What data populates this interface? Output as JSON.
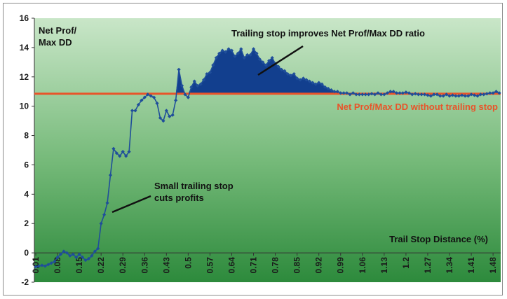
{
  "chart_data": {
    "type": "line",
    "title": "",
    "ylabel": "Net Prof/\nMax DD",
    "xlabel": "Trail Stop Distance (%)",
    "ylim": [
      -2,
      16
    ],
    "y_ticks": [
      "-2",
      "0",
      "2",
      "4",
      "6",
      "8",
      "10",
      "12",
      "14",
      "16"
    ],
    "x_tick_labels": [
      "0.01",
      "0.08",
      "0.15",
      "0.22",
      "0.29",
      "0.36",
      "0.43",
      "0.5",
      "0.57",
      "0.64",
      "0.71",
      "0.78",
      "0.85",
      "0.92",
      "0.99",
      "1.06",
      "1.13",
      "1.2",
      "1.27",
      "1.34",
      "1.41",
      "1.48"
    ],
    "grid": false,
    "reference_line": {
      "value": 10.85,
      "label": "Net Prof/Max DD without trailing stop"
    },
    "annotations": [
      {
        "text": "Trailing stop improves Net Prof/Max DD ratio"
      },
      {
        "text": "Small trailing stop\ncuts profits"
      }
    ],
    "series": [
      {
        "x": [
          0.01,
          0.02,
          0.03,
          0.04,
          0.05,
          0.06,
          0.07,
          0.08,
          0.09,
          0.1,
          0.11,
          0.12,
          0.13,
          0.14,
          0.15,
          0.16,
          0.17,
          0.18,
          0.19,
          0.2,
          0.21,
          0.22,
          0.23,
          0.24,
          0.25,
          0.26,
          0.27,
          0.28,
          0.29,
          0.3,
          0.31,
          0.32,
          0.33,
          0.34,
          0.35,
          0.36,
          0.37,
          0.38,
          0.39,
          0.4,
          0.41,
          0.42,
          0.43,
          0.44,
          0.45,
          0.46,
          0.47,
          0.48,
          0.49,
          0.5,
          0.51,
          0.52,
          0.53,
          0.54,
          0.55,
          0.56,
          0.57,
          0.58,
          0.59,
          0.6,
          0.61,
          0.62,
          0.63,
          0.64,
          0.65,
          0.66,
          0.67,
          0.68,
          0.69,
          0.7,
          0.71,
          0.72,
          0.73,
          0.74,
          0.75,
          0.76,
          0.77,
          0.78,
          0.79,
          0.8,
          0.81,
          0.82,
          0.83,
          0.84,
          0.85,
          0.86,
          0.87,
          0.88,
          0.89,
          0.9,
          0.91,
          0.92,
          0.93,
          0.94,
          0.95,
          0.96,
          0.97,
          0.98,
          0.99,
          1.0,
          1.01,
          1.02,
          1.03,
          1.04,
          1.05,
          1.06,
          1.07,
          1.08,
          1.09,
          1.1,
          1.11,
          1.12,
          1.13,
          1.14,
          1.15,
          1.16,
          1.17,
          1.18,
          1.19,
          1.2,
          1.21,
          1.22,
          1.23,
          1.24,
          1.25,
          1.26,
          1.27,
          1.28,
          1.29,
          1.3,
          1.31,
          1.32,
          1.33,
          1.34,
          1.35,
          1.36,
          1.37,
          1.38,
          1.39,
          1.4,
          1.41,
          1.42,
          1.43,
          1.44,
          1.45,
          1.46,
          1.47,
          1.48,
          1.49,
          1.5
        ],
        "values": [
          -0.95,
          -0.9,
          -0.85,
          -0.9,
          -0.8,
          -0.7,
          -0.6,
          -0.3,
          -0.1,
          0.1,
          0.0,
          -0.2,
          -0.1,
          -0.3,
          -0.1,
          -0.3,
          -0.5,
          -0.4,
          -0.2,
          0.1,
          0.3,
          2.0,
          2.6,
          3.4,
          5.3,
          7.1,
          6.8,
          6.6,
          6.9,
          6.6,
          6.9,
          9.7,
          9.7,
          10.1,
          10.4,
          10.6,
          10.8,
          10.7,
          10.6,
          10.2,
          9.2,
          9.0,
          9.7,
          9.3,
          9.4,
          10.4,
          12.5,
          11.4,
          10.8,
          10.6,
          11.3,
          11.7,
          11.4,
          11.5,
          11.8,
          12.2,
          12.3,
          12.8,
          13.3,
          13.6,
          13.8,
          13.7,
          13.9,
          13.8,
          13.4,
          13.6,
          13.9,
          13.3,
          13.5,
          13.5,
          13.9,
          13.6,
          13.2,
          13.0,
          12.8,
          13.1,
          13.3,
          12.9,
          12.7,
          12.5,
          12.4,
          12.2,
          12.1,
          12.2,
          11.9,
          11.8,
          11.9,
          11.8,
          11.7,
          11.6,
          11.5,
          11.6,
          11.5,
          11.3,
          11.2,
          11.1,
          11.0,
          11.0,
          10.9,
          10.9,
          10.9,
          10.8,
          10.9,
          10.8,
          10.8,
          10.8,
          10.8,
          10.8,
          10.85,
          10.8,
          10.9,
          10.8,
          10.8,
          10.9,
          11.0,
          11.0,
          10.9,
          10.9,
          10.9,
          10.95,
          10.9,
          10.8,
          10.85,
          10.8,
          10.8,
          10.8,
          10.75,
          10.7,
          10.8,
          10.8,
          10.7,
          10.7,
          10.8,
          10.7,
          10.75,
          10.7,
          10.7,
          10.75,
          10.7,
          10.7,
          10.8,
          10.75,
          10.7,
          10.8,
          10.8,
          10.85,
          10.9,
          10.9,
          11.0,
          10.9
        ]
      }
    ],
    "colors": {
      "bg_top": "#c9e6c8",
      "bg_bottom": "#2d8a3c",
      "line": "#1f4e9a",
      "fill": "#123f8e",
      "reference": "#e8542a"
    }
  }
}
